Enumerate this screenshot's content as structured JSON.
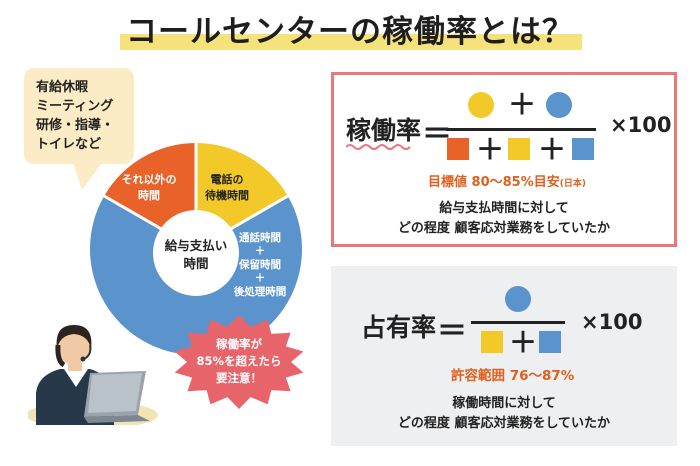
{
  "title": "コールセンターの稼働率とは？",
  "bubble": {
    "lines": [
      "有給休暇",
      "ミーティング",
      "研修・指導・",
      "トイレなど"
    ]
  },
  "pie": {
    "center_line1": "給与支払い",
    "center_line2": "時間",
    "segments": [
      {
        "label_lines": [
          "それ以外の",
          "時間"
        ],
        "color": "#e8622a"
      },
      {
        "label_lines": [
          "電話の",
          "待機時間"
        ],
        "color": "#f2c928"
      },
      {
        "label_lines": [
          "通話時間",
          "＋",
          "保留時間",
          "＋",
          "後処理時間"
        ],
        "color": "#5b93cc"
      }
    ]
  },
  "alert": {
    "lines": [
      "稼働率が",
      "85%を超えたら",
      "要注意！"
    ],
    "color": "#e8646b"
  },
  "box1": {
    "label": "稼働率",
    "equals": "＝",
    "plus": "＋",
    "multiplier": "×100",
    "target_main": "目標値 80〜85%目安",
    "target_sub": "(日本)",
    "desc_line1": "給与支払時間に対して",
    "desc_line2": "どの程度 顧客応対業務をしていたか",
    "border_color": "#e6797a"
  },
  "box2": {
    "label": "占有率",
    "equals": "＝",
    "plus": "＋",
    "multiplier": "×100",
    "target_main": "許容範囲 76〜87%",
    "desc_line1": "稼働時間に対して",
    "desc_line2": "どの程度 顧客応対業務をしていたか"
  },
  "colors": {
    "yellow": "#f2c928",
    "blue": "#5b93cc",
    "orange": "#e8622a",
    "accent_text": "#e0601f"
  }
}
